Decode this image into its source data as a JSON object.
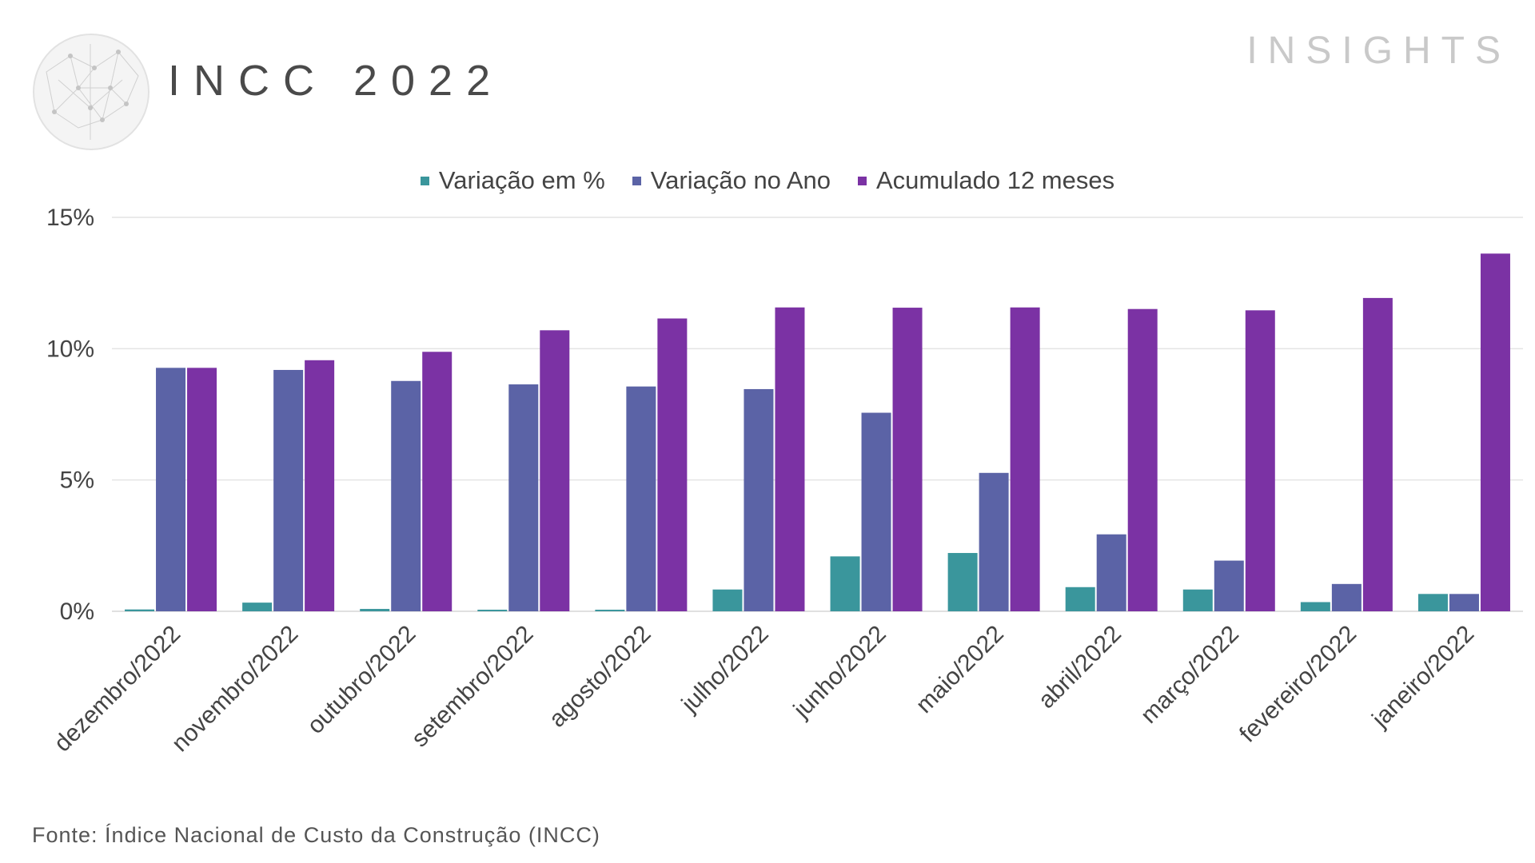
{
  "header": {
    "title": "INCC 2022",
    "brand": "INSIGHTS"
  },
  "footer": {
    "source": "Fonte: Índice Nacional de Custo da Construção (INCC)"
  },
  "chart_data": {
    "type": "bar",
    "categories": [
      "dezembro/2022",
      "novembro/2022",
      "outubro/2022",
      "setembro/2022",
      "agosto/2022",
      "julho/2022",
      "junho/2022",
      "maio/2022",
      "abril/2022",
      "março/2022",
      "fevereiro/2022",
      "janeiro/2022"
    ],
    "series": [
      {
        "name": "Variação em %",
        "color": "#3a969c",
        "values": [
          0.07,
          0.33,
          0.09,
          0.06,
          0.06,
          0.83,
          2.09,
          2.22,
          0.92,
          0.83,
          0.35,
          0.66
        ]
      },
      {
        "name": "Variação no Ano",
        "color": "#5b63a6",
        "values": [
          9.27,
          9.19,
          8.77,
          8.64,
          8.56,
          8.46,
          7.56,
          5.27,
          2.93,
          1.93,
          1.04,
          0.66
        ]
      },
      {
        "name": "Acumulado 12 meses",
        "color": "#7b32a4",
        "values": [
          9.27,
          9.56,
          9.88,
          10.7,
          11.15,
          11.57,
          11.56,
          11.57,
          11.51,
          11.46,
          11.93,
          13.62
        ]
      }
    ],
    "yticks": [
      "0%",
      "5%",
      "10%",
      "15%"
    ],
    "ylim": [
      0,
      15
    ],
    "grid": true,
    "legend_position": "top-center"
  }
}
